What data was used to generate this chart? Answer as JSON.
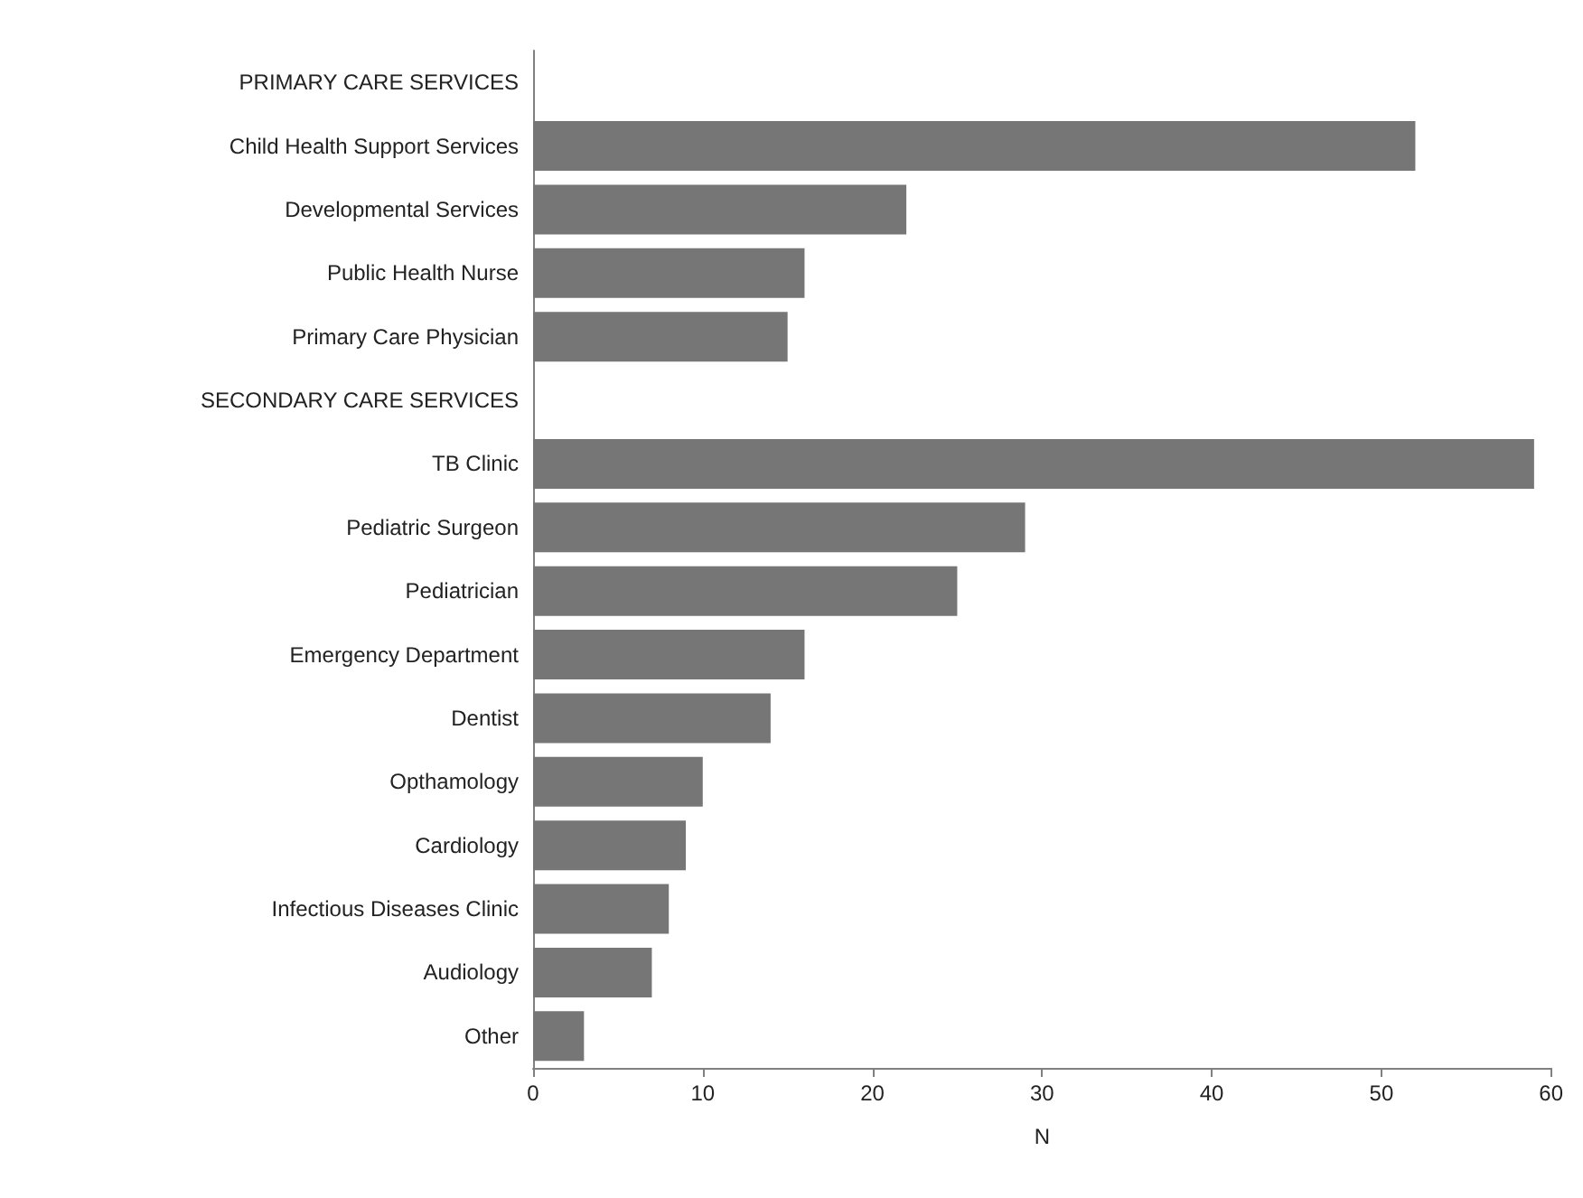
{
  "chart_data": {
    "type": "bar",
    "orientation": "horizontal",
    "xlabel": "N",
    "categories": [
      "PRIMARY CARE SERVICES",
      "Child Health Support Services",
      "Developmental Services",
      "Public Health Nurse",
      "Primary Care Physician",
      "SECONDARY CARE SERVICES",
      "TB Clinic",
      "Pediatric Surgeon",
      "Pediatrician",
      "Emergency Department",
      "Dentist",
      "Opthamology",
      "Cardiology",
      "Infectious Diseases Clinic",
      "Audiology",
      "Other"
    ],
    "values": [
      null,
      52,
      22,
      16,
      15,
      null,
      59,
      29,
      25,
      16,
      14,
      10,
      9,
      8,
      7,
      3
    ],
    "color": "#767676",
    "xlim": [
      0,
      60
    ],
    "xticks": [
      0,
      10,
      20,
      30,
      40,
      50,
      60
    ],
    "grid": false
  }
}
